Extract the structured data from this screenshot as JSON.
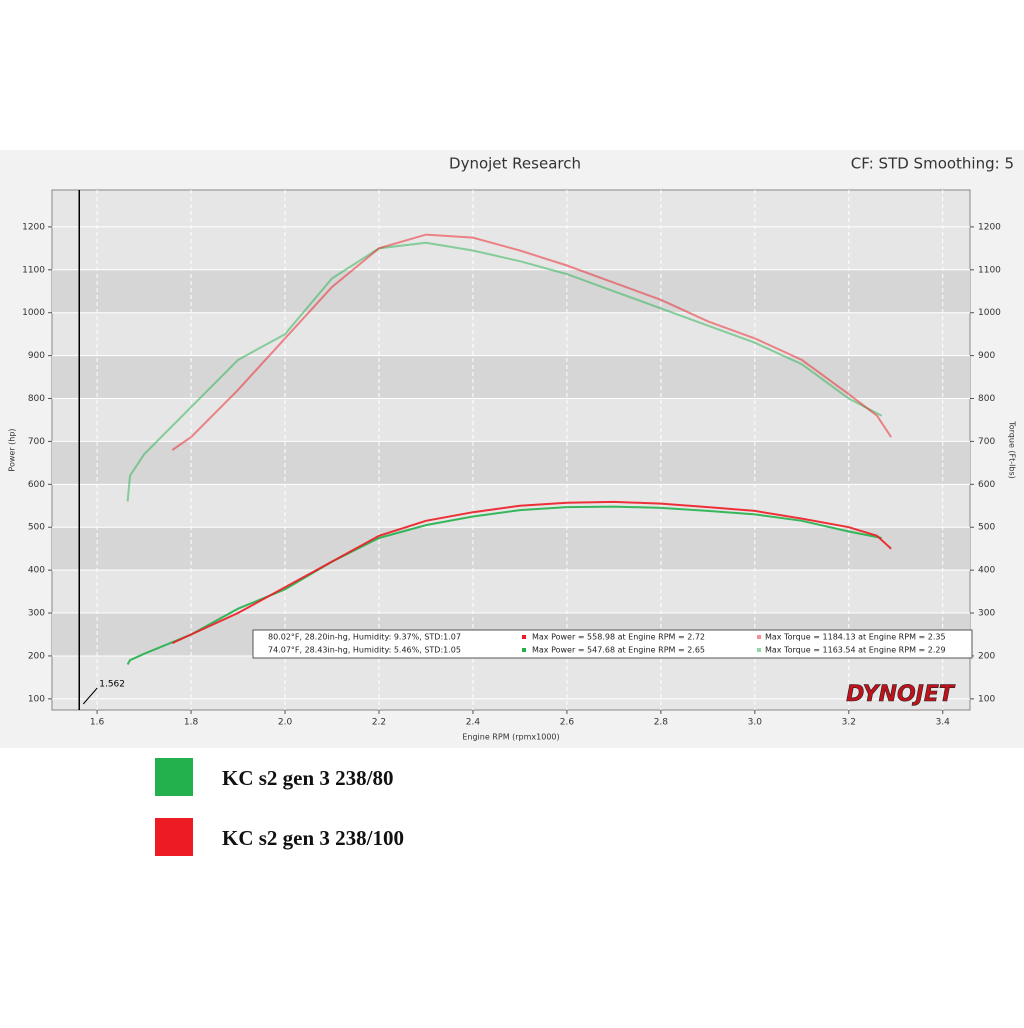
{
  "chart_data": {
    "type": "line",
    "title": "Dynojet Research",
    "subtitle": "CF: STD Smoothing: 5",
    "x_label": "Engine RPM (rpmx1000)",
    "y_label": "Power (hp)",
    "y2_label": "Torque (Ft-lbs)",
    "logo": "DYNOJET",
    "cursor": 1.562,
    "xlim": [
      1.504,
      3.458
    ],
    "xticks": [
      1.6,
      1.8,
      {
        "value": 2,
        "label": "2.0"
      },
      2.2,
      2.4,
      2.6,
      2.8,
      {
        "value": 3,
        "label": "3.0"
      },
      3.2,
      3.4
    ],
    "ylim": [
      74,
      1286
    ],
    "yticks": [
      100,
      200,
      300,
      400,
      500,
      600,
      700,
      800,
      900,
      1000,
      1100,
      1200
    ],
    "y2lim": [
      74,
      1286
    ],
    "y2ticks": [
      100,
      200,
      300,
      400,
      500,
      600,
      700,
      800,
      900,
      1000,
      1100,
      1200
    ],
    "grid": true,
    "series": [
      {
        "name": "KC s2 gen 3 238/80",
        "color": "#22b14c",
        "info": [
          "74.07°F, 28.43in-hg, Humidity: 5.46%, STD:1.05",
          "Max Power = 547.68 at Engine RPM = 2.65",
          "Max Torque = 1163.54 at Engine RPM = 2.29"
        ],
        "x": [
          1.665,
          1.67,
          1.7,
          1.8,
          1.9,
          2.0,
          2.1,
          2.2,
          2.3,
          2.4,
          2.5,
          2.6,
          2.7,
          2.8,
          2.9,
          3.0,
          3.1,
          3.2,
          3.27
        ],
        "power": [
          180,
          190,
          205,
          250,
          310,
          355,
          420,
          475,
          505,
          525,
          540,
          547,
          548,
          545,
          538,
          530,
          515,
          490,
          475
        ],
        "torque": [
          560,
          620,
          670,
          780,
          890,
          950,
          1080,
          1150,
          1163,
          1145,
          1120,
          1090,
          1050,
          1010,
          970,
          930,
          880,
          800,
          760
        ]
      },
      {
        "name": "KC s2 gen 3 238/100",
        "color": "#ed1c24",
        "info": [
          "80.02°F, 28.20in-hg, Humidity: 9.37%, STD:1.07",
          "Max Power = 558.98 at Engine RPM = 2.72",
          "Max Torque = 1184.13 at Engine RPM = 2.35"
        ],
        "x": [
          1.76,
          1.8,
          1.9,
          2.0,
          2.1,
          2.2,
          2.3,
          2.4,
          2.5,
          2.6,
          2.7,
          2.8,
          2.9,
          3.0,
          3.1,
          3.2,
          3.26,
          3.29
        ],
        "power": [
          230,
          250,
          300,
          360,
          420,
          480,
          515,
          535,
          550,
          557,
          559,
          555,
          547,
          538,
          520,
          500,
          480,
          450
        ],
        "torque": [
          680,
          710,
          820,
          940,
          1060,
          1150,
          1182,
          1175,
          1145,
          1110,
          1070,
          1030,
          980,
          940,
          890,
          810,
          760,
          710
        ]
      }
    ]
  }
}
